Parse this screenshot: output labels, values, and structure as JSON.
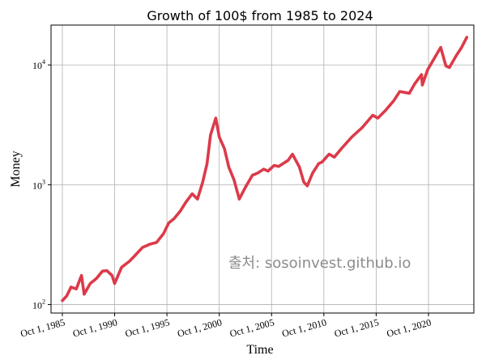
{
  "chart_data": {
    "type": "line",
    "title": "Growth of 100$ from 1985 to 2024",
    "xlabel": "Time",
    "ylabel": "Money",
    "y_scale": "log",
    "ylim": [
      85,
      21500
    ],
    "xlim": [
      "1984-09-01",
      "2025-02-01"
    ],
    "grid": true,
    "line_color": "#dc3a4a",
    "x_ticks": [
      {
        "date": "1985-10-01",
        "label": "Oct 1, 1985"
      },
      {
        "date": "1990-10-01",
        "label": "Oct 1, 1990"
      },
      {
        "date": "1995-10-01",
        "label": "Oct 1, 1995"
      },
      {
        "date": "2000-10-01",
        "label": "Oct 1, 2000"
      },
      {
        "date": "2005-10-01",
        "label": "Oct 1, 2005"
      },
      {
        "date": "2010-10-01",
        "label": "Oct 1, 2010"
      },
      {
        "date": "2015-10-01",
        "label": "Oct 1, 2015"
      },
      {
        "date": "2020-10-01",
        "label": "Oct 1, 2020"
      }
    ],
    "y_ticks": [
      {
        "value": 100,
        "base": "10",
        "exp": "2"
      },
      {
        "value": 1000,
        "base": "10",
        "exp": "3"
      },
      {
        "value": 10000,
        "base": "10",
        "exp": "4"
      }
    ],
    "series": [
      {
        "x": [
          "1985-10-01",
          "1986-03-01",
          "1986-08-01",
          "1987-02-01",
          "1987-08-01",
          "1987-11-01",
          "1988-06-01",
          "1989-01-01",
          "1989-08-01",
          "1990-01-01",
          "1990-07-01",
          "1990-10-01",
          "1991-06-01",
          "1992-03-01",
          "1992-09-01",
          "1993-06-01",
          "1994-03-01",
          "1994-10-01",
          "1995-06-01",
          "1995-12-01",
          "1996-06-01",
          "1997-01-01",
          "1997-08-01",
          "1998-03-01",
          "1998-09-01",
          "1999-03-01",
          "1999-08-01",
          "1999-12-01",
          "2000-06-01",
          "2000-10-01",
          "2001-04-01",
          "2001-09-01",
          "2002-03-01",
          "2002-09-01",
          "2003-04-01",
          "2003-12-01",
          "2004-06-01",
          "2005-01-01",
          "2005-06-01",
          "2006-01-01",
          "2006-06-01",
          "2007-05-01",
          "2007-10-01",
          "2008-06-01",
          "2008-11-01",
          "2009-03-01",
          "2009-09-01",
          "2010-04-01",
          "2010-08-01",
          "2011-04-01",
          "2011-10-01",
          "2012-06-01",
          "2013-06-01",
          "2014-06-01",
          "2015-06-01",
          "2015-12-01",
          "2016-09-01",
          "2017-06-01",
          "2018-01-01",
          "2018-12-01",
          "2019-06-01",
          "2020-02-01",
          "2020-03-01",
          "2020-09-01",
          "2021-06-01",
          "2021-12-01",
          "2022-06-01",
          "2022-10-01",
          "2023-06-01",
          "2023-12-01",
          "2024-06-01"
        ],
        "values": [
          108,
          118,
          140,
          135,
          175,
          122,
          150,
          165,
          190,
          192,
          175,
          150,
          205,
          230,
          255,
          300,
          320,
          330,
          390,
          480,
          520,
          600,
          720,
          840,
          760,
          1050,
          1500,
          2600,
          3600,
          2500,
          2000,
          1400,
          1100,
          760,
          950,
          1200,
          1250,
          1350,
          1300,
          1450,
          1420,
          1600,
          1800,
          1400,
          1050,
          980,
          1250,
          1500,
          1550,
          1800,
          1700,
          2000,
          2500,
          3000,
          3800,
          3600,
          4200,
          5000,
          6000,
          5800,
          6900,
          8300,
          6800,
          9100,
          11800,
          14000,
          9800,
          9500,
          12000,
          14000,
          17000
        ]
      }
    ],
    "annotation": "출처: sosoinvest.github.io"
  }
}
